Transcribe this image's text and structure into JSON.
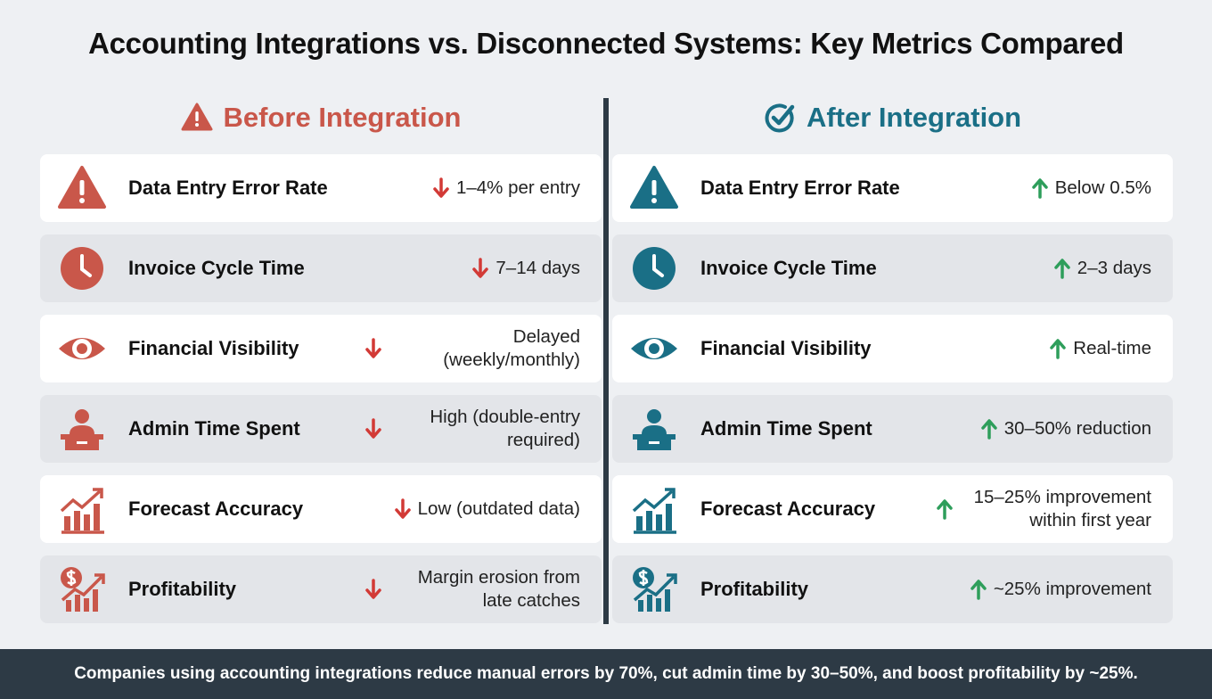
{
  "title": "Accounting Integrations vs. Disconnected Systems: Key Metrics Compared",
  "before": {
    "heading": "Before Integration",
    "rows": [
      {
        "label": "Data Entry Error Rate",
        "value": "1–4% per entry"
      },
      {
        "label": "Invoice Cycle Time",
        "value": "7–14 days"
      },
      {
        "label": "Financial Visibility",
        "value": "Delayed (weekly/monthly)"
      },
      {
        "label": "Admin Time Spent",
        "value": "High (double-entry required)"
      },
      {
        "label": "Forecast Accuracy",
        "value": "Low (outdated data)"
      },
      {
        "label": "Profitability",
        "value": "Margin erosion from late catches"
      }
    ]
  },
  "after": {
    "heading": "After Integration",
    "rows": [
      {
        "label": "Data Entry Error Rate",
        "value": "Below 0.5%"
      },
      {
        "label": "Invoice Cycle Time",
        "value": "2–3 days"
      },
      {
        "label": "Financial Visibility",
        "value": "Real-time"
      },
      {
        "label": "Admin Time Spent",
        "value": "30–50% reduction"
      },
      {
        "label": "Forecast Accuracy",
        "value": "15–25% improvement within first year"
      },
      {
        "label": "Profitability",
        "value": "~25% improvement"
      }
    ]
  },
  "footer": "Companies using accounting integrations reduce manual errors by 70%, cut admin time by 30–50%, and boost profitability by ~25%."
}
